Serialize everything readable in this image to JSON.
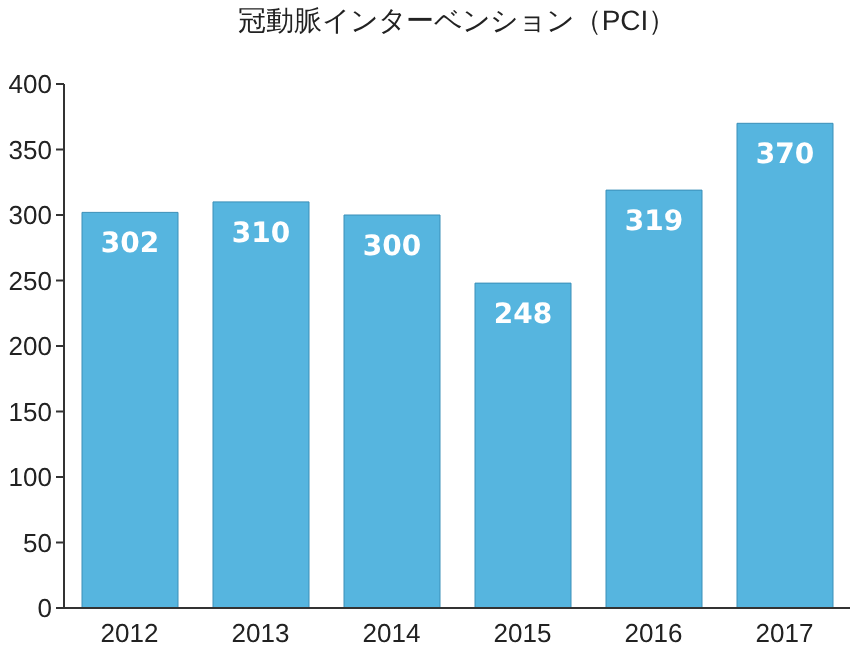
{
  "chart_data": {
    "type": "bar",
    "title": "冠動脈インターベンション（PCI）",
    "categories": [
      "2012",
      "2013",
      "2014",
      "2015",
      "2016",
      "2017"
    ],
    "values": [
      302,
      310,
      300,
      248,
      319,
      370
    ],
    "color": "#56b5df",
    "ylim": [
      0,
      400
    ],
    "yticks": [
      0,
      50,
      100,
      150,
      200,
      250,
      300,
      350,
      400
    ],
    "grid": false,
    "data_labels": true
  }
}
